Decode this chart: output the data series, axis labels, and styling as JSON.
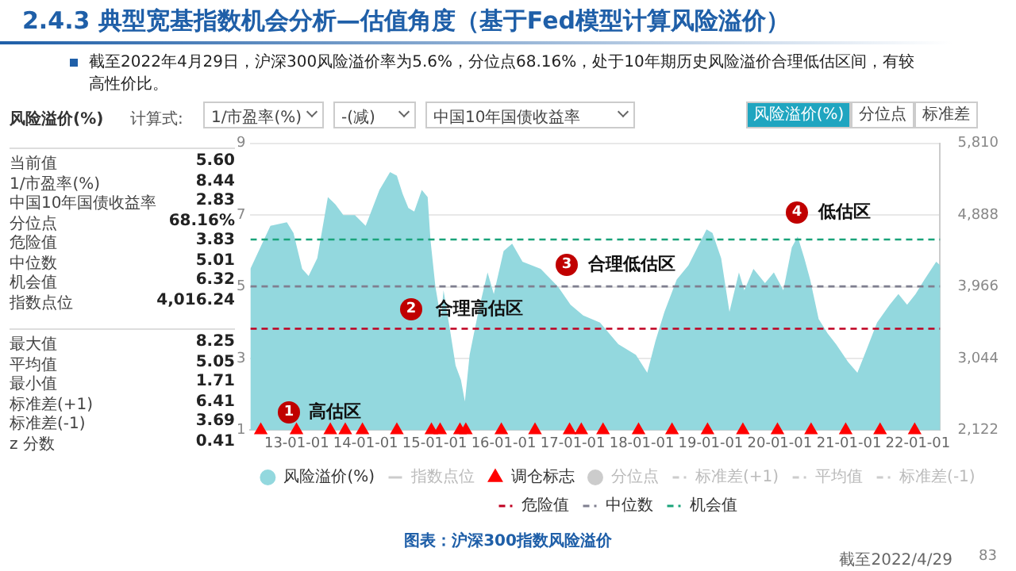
{
  "chart_data": [
    {
      "type": "other",
      "annotations": [
        "风险溢价(%)",
        "计算式:",
        "1/市盈率(%)",
        "-(减)",
        "中国10年国债收益率",
        "当前值",
        "5.60",
        "1/市盈率(%)",
        "8.44",
        "中国10年国债收益率",
        "2.83",
        "分位点",
        "68.16%",
        "危险值",
        "3.83",
        "中位数",
        "5.01",
        "机会值",
        "6.32",
        "指数点位",
        "4,016.24",
        "最大值",
        "8.25",
        "平均值",
        "5.05",
        "最小值",
        "1.71",
        "标准差(+1)",
        "6.41",
        "标准差(-1)",
        "3.69",
        "z 分数",
        "0.41",
        "风险溢价(%)",
        "分位点",
        "标准差"
      ]
    },
    {
      "type": "area",
      "title": "2.4.3 典型宽基指数机会分析—估值角度（基于Fed模型计算风险溢价）",
      "subtitle": "截至2022年4月29日，沪深300风险溢价率为5.6%，分位点68.16%，处于10年期历史风险溢价合理低估区间，有较高性价比。",
      "x": [
        "2012-05-01",
        "2012-08-15",
        "2012-11-10",
        "2012-12-15",
        "2013-01-30",
        "2013-03-05",
        "2013-04-20",
        "2013-06-15",
        "2013-07-25",
        "2013-09-05",
        "2013-11-05",
        "2014-01-01",
        "2014-03-15",
        "2014-05-10",
        "2014-06-15",
        "2014-07-15",
        "2014-08-15",
        "2014-09-15",
        "2014-10-25",
        "2014-11-25",
        "2014-12-10",
        "2015-01-05",
        "2015-02-03",
        "2015-02-17",
        "2015-03-20",
        "2015-04-22",
        "2015-05-20",
        "2015-06-10",
        "2015-07-05",
        "2015-08-20",
        "2015-10-08",
        "2015-11-10",
        "2016-01-01",
        "2016-02-15",
        "2016-04-10",
        "2016-07-15",
        "2016-10-15",
        "2016-12-20",
        "2017-02-25",
        "2017-05-25",
        "2017-08-30",
        "2017-12-01",
        "2018-01-30",
        "2018-03-15",
        "2018-05-01",
        "2018-07-05",
        "2018-09-05",
        "2018-12-10",
        "2019-01-10",
        "2019-02-25",
        "2019-04-10",
        "2019-05-30",
        "2019-06-28",
        "2019-08-15",
        "2019-10-15",
        "2019-12-01",
        "2020-01-20",
        "2020-03-05",
        "2020-04-05",
        "2020-05-10",
        "2020-06-10",
        "2020-07-25",
        "2020-09-10",
        "2020-10-25",
        "2020-12-28",
        "2021-02-15",
        "2021-04-01",
        "2021-05-30",
        "2021-08-05",
        "2021-09-20",
        "2021-11-05",
        "2021-12-20",
        "2022-02-05",
        "2022-04-08",
        "2022-04-29"
      ],
      "series": [
        {
          "name": "风险溢价(%)",
          "color": "#93d8de",
          "values": [
            5.5,
            6.7,
            6.8,
            6.5,
            5.5,
            5.3,
            5.8,
            7.5,
            7.3,
            7.0,
            7.0,
            6.7,
            7.7,
            8.2,
            8.1,
            7.6,
            7.2,
            7.1,
            7.7,
            7.5,
            6.3,
            5.0,
            4.1,
            4.9,
            3.9,
            2.8,
            2.4,
            1.8,
            3.1,
            4.3,
            5.4,
            4.8,
            6.0,
            6.2,
            5.7,
            5.5,
            5.0,
            4.5,
            4.2,
            4.0,
            3.4,
            3.1,
            2.6,
            3.5,
            4.3,
            5.2,
            5.6,
            6.6,
            6.5,
            5.8,
            4.3,
            5.4,
            4.9,
            5.5,
            5.1,
            5.4,
            4.9,
            6.1,
            6.4,
            5.8,
            5.2,
            4.1,
            3.7,
            3.4,
            2.9,
            2.6,
            3.2,
            4.0,
            4.5,
            4.8,
            4.5,
            4.8,
            5.2,
            5.7,
            5.6
          ]
        },
        {
          "name": "指数点位",
          "type": "line",
          "color": "#cccccc",
          "line_style": "solid",
          "values": [
            null,
            null,
            null,
            null,
            null,
            null,
            null,
            null,
            null,
            null,
            null,
            null,
            null,
            null,
            null,
            null,
            null,
            null,
            null,
            null,
            null,
            null,
            null,
            null,
            null,
            null,
            null,
            null,
            null,
            null,
            null,
            null,
            null,
            null,
            null,
            null,
            null,
            null,
            null,
            null,
            null,
            null,
            null,
            null,
            null,
            null,
            null,
            null,
            null,
            null,
            null,
            null,
            null,
            null,
            null,
            null,
            null,
            null,
            null,
            null,
            null,
            null,
            null,
            null,
            null,
            null,
            null,
            null,
            null,
            null,
            null,
            null,
            null,
            null,
            null
          ]
        },
        {
          "name": "调仓标志",
          "type": "scatter",
          "marker": "triangle",
          "color": "#ff0000",
          "x": [
            "2012-06-25",
            "2012-12-31",
            "2013-06-28",
            "2013-09-15",
            "2013-12-15",
            "2014-06-15",
            "2014-12-15",
            "2015-01-30",
            "2015-05-15",
            "2015-06-15",
            "2015-12-20",
            "2016-06-15",
            "2016-12-15",
            "2017-02-15",
            "2017-06-10",
            "2017-12-15",
            "2018-06-10",
            "2018-12-15",
            "2019-06-20",
            "2019-12-20",
            "2020-06-15",
            "2020-12-15",
            "2021-06-15",
            "2021-12-15"
          ],
          "values": [
            1,
            1,
            1,
            1,
            1,
            1,
            1,
            1,
            1,
            1,
            1,
            1,
            1,
            1,
            1,
            1,
            1,
            1,
            1,
            1,
            1,
            1,
            1,
            1
          ]
        },
        {
          "name": "分位点",
          "type": "scatter",
          "marker": "circle",
          "color": "#cccccc",
          "values": [
            null,
            null,
            null,
            null,
            null,
            null,
            null,
            null,
            null,
            null,
            null,
            null,
            null,
            null,
            null,
            null,
            null,
            null,
            null,
            null,
            null,
            null,
            null,
            null,
            null,
            null,
            null,
            null,
            null,
            null,
            null,
            null,
            null,
            null,
            null,
            null,
            null,
            null,
            null,
            null,
            null,
            null,
            null,
            null,
            null,
            null,
            null,
            null,
            null,
            null,
            null,
            null,
            null,
            null,
            null,
            null,
            null,
            null,
            null,
            null,
            null,
            null,
            null,
            null,
            null,
            null,
            null,
            null,
            null,
            null,
            null,
            null,
            null,
            null,
            null
          ]
        },
        {
          "name": "标准差(+1)",
          "type": "line",
          "line_style": "dashed",
          "color": "#cccccc",
          "values": [
            null,
            null,
            null,
            null,
            null,
            null,
            null,
            null,
            null,
            null,
            null,
            null,
            null,
            null,
            null,
            null,
            null,
            null,
            null,
            null,
            null,
            null,
            null,
            null,
            null,
            null,
            null,
            null,
            null,
            null,
            null,
            null,
            null,
            null,
            null,
            null,
            null,
            null,
            null,
            null,
            null,
            null,
            null,
            null,
            null,
            null,
            null,
            null,
            null,
            null,
            null,
            null,
            null,
            null,
            null,
            null,
            null,
            null,
            null,
            null,
            null,
            null,
            null,
            null,
            null,
            null,
            null,
            null,
            null,
            null,
            null,
            null,
            null,
            null,
            null
          ]
        },
        {
          "name": "平均值",
          "type": "line",
          "line_style": "dashed",
          "color": "#cccccc",
          "values": [
            null,
            null,
            null,
            null,
            null,
            null,
            null,
            null,
            null,
            null,
            null,
            null,
            null,
            null,
            null,
            null,
            null,
            null,
            null,
            null,
            null,
            null,
            null,
            null,
            null,
            null,
            null,
            null,
            null,
            null,
            null,
            null,
            null,
            null,
            null,
            null,
            null,
            null,
            null,
            null,
            null,
            null,
            null,
            null,
            null,
            null,
            null,
            null,
            null,
            null,
            null,
            null,
            null,
            null,
            null,
            null,
            null,
            null,
            null,
            null,
            null,
            null,
            null,
            null,
            null,
            null,
            null,
            null,
            null,
            null,
            null,
            null,
            null,
            null,
            null
          ]
        },
        {
          "name": "标准差(-1)",
          "type": "line",
          "line_style": "dashed",
          "color": "#cccccc",
          "values": [
            null,
            null,
            null,
            null,
            null,
            null,
            null,
            null,
            null,
            null,
            null,
            null,
            null,
            null,
            null,
            null,
            null,
            null,
            null,
            null,
            null,
            null,
            null,
            null,
            null,
            null,
            null,
            null,
            null,
            null,
            null,
            null,
            null,
            null,
            null,
            null,
            null,
            null,
            null,
            null,
            null,
            null,
            null,
            null,
            null,
            null,
            null,
            null,
            null,
            null,
            null,
            null,
            null,
            null,
            null,
            null,
            null,
            null,
            null,
            null,
            null,
            null,
            null,
            null,
            null,
            null,
            null,
            null,
            null,
            null,
            null,
            null,
            null,
            null,
            null
          ]
        }
      ],
      "ref_lines": [
        {
          "axis": "y",
          "value": 3.83,
          "label": "危险值",
          "color": "#c00020",
          "line_style": "dashed"
        },
        {
          "axis": "y",
          "value": 5.01,
          "label": "中位数",
          "color": "#7f7f8f",
          "line_style": "dashed"
        },
        {
          "axis": "y",
          "value": 6.32,
          "label": "机会值",
          "color": "#1aa37a",
          "line_style": "dashed"
        }
      ],
      "xlim": [
        "2012-05-01",
        "2022-04-29"
      ],
      "xticks": [
        {
          "value": "2013-01-01",
          "label": "13-01-01"
        },
        {
          "value": "2014-01-01",
          "label": "14-01-01"
        },
        {
          "value": "2015-01-01",
          "label": "15-01-01"
        },
        {
          "value": "2016-01-01",
          "label": "16-01-01"
        },
        {
          "value": "2017-01-01",
          "label": "17-01-01"
        },
        {
          "value": "2018-01-01",
          "label": "18-01-01"
        },
        {
          "value": "2019-01-01",
          "label": "19-01-01"
        },
        {
          "value": "2020-01-01",
          "label": "20-01-01"
        },
        {
          "value": "2021-01-01",
          "label": "21-01-01"
        },
        {
          "value": "2022-01-01",
          "label": "22-01-01"
        }
      ],
      "ylim": [
        1,
        9
      ],
      "yticks": [
        1,
        3,
        5,
        7,
        9
      ],
      "y2lim": [
        2122,
        5810
      ],
      "y2ticks": [
        {
          "value": 2122,
          "label": "2,122"
        },
        {
          "value": 3044,
          "label": "3,044"
        },
        {
          "value": 3966,
          "label": "3,966"
        },
        {
          "value": 4888,
          "label": "4,888"
        },
        {
          "value": 5810,
          "label": "5,810"
        }
      ],
      "grid": "y",
      "legend": "bottom",
      "annotations": [
        "1",
        "高估区",
        "2",
        "合理高估区",
        "3",
        "合理低估区",
        "4",
        "低估区",
        "图表：沪深300指数风险溢价",
        "截至2022/4/29",
        "83"
      ]
    }
  ]
}
